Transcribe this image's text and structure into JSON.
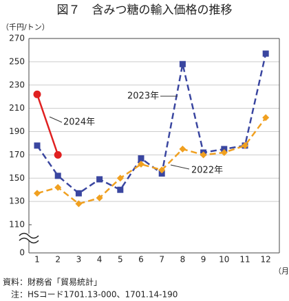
{
  "chart_data": {
    "type": "line",
    "title": "図７　含みつ糖の輸入価格の推移",
    "y_unit": "（千円/トン）",
    "x_unit": "（月）",
    "categories": [
      "1",
      "2",
      "3",
      "4",
      "5",
      "6",
      "7",
      "8",
      "9",
      "10",
      "11",
      "12"
    ],
    "series": [
      {
        "name": "2023年",
        "color": "#3a46a0",
        "marker": "square",
        "dash": true,
        "values": [
          178,
          152,
          137,
          149,
          140,
          167,
          154,
          248,
          172,
          175,
          178,
          257
        ]
      },
      {
        "name": "2022年",
        "color": "#f0a020",
        "marker": "diamond",
        "dash": true,
        "values": [
          137,
          142,
          128,
          133,
          150,
          162,
          157,
          175,
          170,
          172,
          178,
          202
        ]
      },
      {
        "name": "2024年",
        "color": "#e02020",
        "marker": "circle",
        "dash": false,
        "values": [
          222,
          170,
          null,
          null,
          null,
          null,
          null,
          null,
          null,
          null,
          null,
          null
        ]
      }
    ],
    "ylim": [
      110,
      270
    ],
    "yticks": [
      0,
      110,
      130,
      150,
      170,
      190,
      210,
      230,
      250,
      270
    ],
    "axis_break": true,
    "grid": true,
    "source": "資料：財務省「貿易統計」",
    "note": "注：HSコード1701.13-000、1701.14-190"
  }
}
